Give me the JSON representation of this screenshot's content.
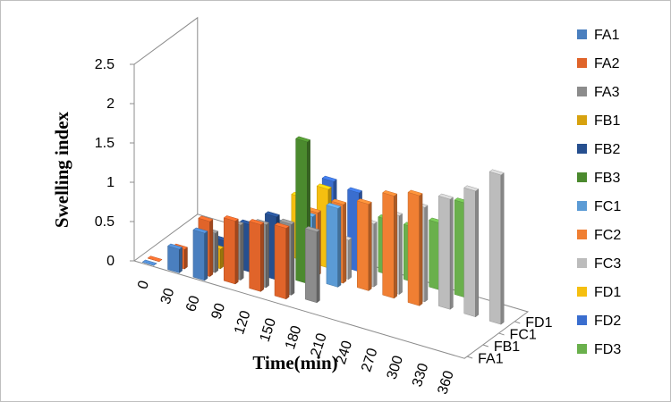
{
  "chart_data": {
    "type": "bar",
    "subtype": "3d-column",
    "xlabel": "Time(min)",
    "ylabel": "Swelling index",
    "ylim": [
      0,
      2.5
    ],
    "yticks": [
      "0",
      "0.5",
      "1",
      "1.5",
      "2",
      "2.5"
    ],
    "categories": [
      "0",
      "30",
      "60",
      "90",
      "120",
      "150",
      "180",
      "210",
      "240",
      "270",
      "300",
      "330",
      "360"
    ],
    "depth_ticks": [
      "FA1",
      "FB1",
      "FC1",
      "FD1"
    ],
    "legend_position": "right",
    "series": [
      {
        "name": "FA1",
        "color": "#4a7fbf",
        "values": [
          0.0,
          0.3,
          0.6,
          null,
          null,
          null,
          null,
          null,
          null,
          null,
          null,
          null,
          null
        ]
      },
      {
        "name": "FA2",
        "color": "#e0642a",
        "values": [
          0.0,
          0.25,
          0.7,
          0.8,
          0.85,
          0.9,
          null,
          null,
          null,
          null,
          null,
          null,
          null
        ]
      },
      {
        "name": "FA3",
        "color": "#8c8c8c",
        "values": [
          null,
          null,
          0.5,
          0.7,
          0.8,
          0.9,
          0.9,
          null,
          null,
          null,
          null,
          null,
          null
        ]
      },
      {
        "name": "FB1",
        "color": "#d7a20f",
        "values": [
          null,
          null,
          0.25,
          null,
          null,
          null,
          null,
          null,
          null,
          null,
          null,
          null,
          null
        ]
      },
      {
        "name": "FB2",
        "color": "#264f8f",
        "values": [
          null,
          null,
          0.3,
          0.6,
          0.8,
          null,
          null,
          null,
          null,
          null,
          null,
          null,
          null
        ]
      },
      {
        "name": "FB3",
        "color": "#4b8a2e",
        "values": [
          null,
          null,
          null,
          null,
          0.6,
          1.8,
          null,
          null,
          null,
          null,
          null,
          null,
          null
        ]
      },
      {
        "name": "FC1",
        "color": "#5b9bd5",
        "values": [
          null,
          null,
          null,
          0.4,
          0.6,
          0.8,
          1.0,
          null,
          null,
          null,
          null,
          null,
          null
        ]
      },
      {
        "name": "FC2",
        "color": "#f07f33",
        "values": [
          null,
          null,
          null,
          null,
          null,
          0.8,
          1.0,
          1.1,
          1.3,
          1.4,
          null,
          null,
          null
        ]
      },
      {
        "name": "FC3",
        "color": "#bcbcbc",
        "values": [
          null,
          null,
          null,
          null,
          null,
          null,
          0.5,
          0.8,
          1.0,
          1.2,
          1.4,
          1.6,
          1.9
        ]
      },
      {
        "name": "FD1",
        "color": "#f5bf10",
        "values": [
          null,
          null,
          null,
          null,
          0.8,
          1.0,
          null,
          null,
          null,
          null,
          null,
          null,
          null
        ]
      },
      {
        "name": "FD2",
        "color": "#3a6ecf",
        "values": [
          null,
          null,
          null,
          null,
          null,
          1.05,
          1.0,
          null,
          null,
          null,
          null,
          null,
          null
        ]
      },
      {
        "name": "FD3",
        "color": "#6ab04c",
        "values": [
          null,
          null,
          null,
          null,
          null,
          null,
          0.65,
          0.7,
          0.7,
          0.85,
          1.2,
          null,
          null
        ]
      }
    ]
  }
}
